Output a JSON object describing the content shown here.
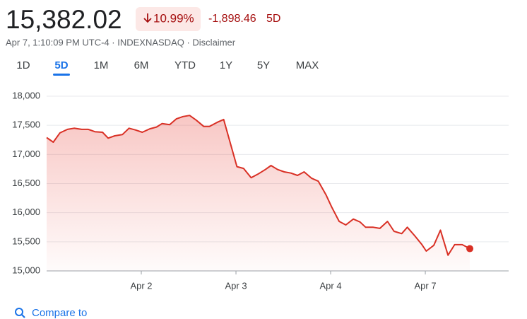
{
  "header": {
    "price": "15,382.02",
    "change_pct": "10.99%",
    "change": "-1,898.46",
    "period": "5D",
    "subtitle": "Apr 7, 1:10:09 PM UTC-4 · INDEXNASDAQ · Disclaimer"
  },
  "tabs": {
    "items": [
      "1D",
      "5D",
      "1M",
      "6M",
      "YTD",
      "1Y",
      "5Y",
      "MAX"
    ],
    "selected": 1
  },
  "chart_data": {
    "type": "line",
    "x": [
      0,
      0.07,
      0.14,
      0.22,
      0.29,
      0.37,
      0.44,
      0.51,
      0.59,
      0.65,
      0.72,
      0.8,
      0.87,
      0.94,
      1.01,
      1.09,
      1.16,
      1.22,
      1.3,
      1.37,
      1.44,
      1.51,
      1.58,
      1.66,
      1.72,
      1.8,
      1.87,
      2.01,
      2.08,
      2.16,
      2.23,
      2.31,
      2.37,
      2.44,
      2.51,
      2.58,
      2.65,
      2.72,
      2.8,
      2.87,
      2.95,
      3.01,
      3.09,
      3.16,
      3.24,
      3.31,
      3.37,
      3.45,
      3.52,
      3.6,
      3.67,
      3.75,
      3.81,
      3.89,
      3.96,
      4.01,
      4.09,
      4.16,
      4.24,
      4.31,
      4.39,
      4.47
    ],
    "series": [
      {
        "color": "#d93025",
        "values": [
          17290,
          17210,
          17370,
          17430,
          17450,
          17430,
          17430,
          17390,
          17380,
          17280,
          17320,
          17340,
          17450,
          17420,
          17380,
          17440,
          17470,
          17530,
          17510,
          17610,
          17650,
          17670,
          17590,
          17480,
          17480,
          17550,
          17600,
          16790,
          16760,
          16600,
          16660,
          16740,
          16810,
          16740,
          16700,
          16680,
          16640,
          16700,
          16590,
          16540,
          16310,
          16100,
          15850,
          15790,
          15890,
          15840,
          15750,
          15750,
          15730,
          15850,
          15680,
          15640,
          15750,
          15600,
          15460,
          15340,
          15440,
          15700,
          15270,
          15450,
          15450,
          15382.02
        ]
      }
    ],
    "xlim": [
      0,
      4.88
    ],
    "xticks": [
      {
        "value": 1,
        "label": "Apr 2"
      },
      {
        "value": 2,
        "label": "Apr 3"
      },
      {
        "value": 3,
        "label": "Apr 4"
      },
      {
        "value": 4,
        "label": "Apr 7"
      }
    ],
    "ylim": [
      15000,
      18000
    ],
    "yticks": [
      {
        "value": 15000,
        "label": "15,000"
      },
      {
        "value": 15500,
        "label": "15,500"
      },
      {
        "value": 16000,
        "label": "16,000"
      },
      {
        "value": 16500,
        "label": "16,500"
      },
      {
        "value": 17000,
        "label": "17,000"
      },
      {
        "value": 17500,
        "label": "17,500"
      },
      {
        "value": 18000,
        "label": "18,000"
      }
    ],
    "grid": true
  },
  "compare": {
    "label": "Compare to"
  }
}
